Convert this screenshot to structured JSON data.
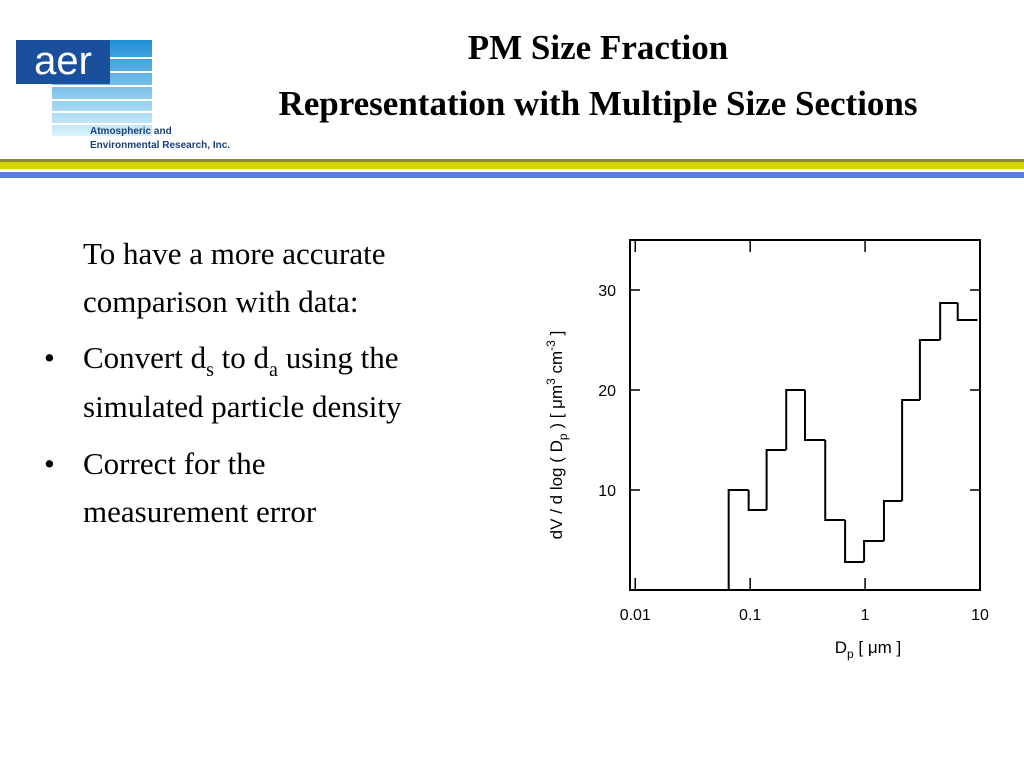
{
  "header": {
    "logo_text": "aer",
    "org_lines": [
      "Atmospheric and",
      "Environmental Research, Inc."
    ],
    "title_lines": [
      "PM Size Fraction",
      "Representation with Multiple Size Sections"
    ]
  },
  "body": {
    "intro_lines": [
      "To have a more accurate",
      "comparison with data:"
    ],
    "bullets": [
      {
        "line1": [
          "Convert d",
          "s",
          " to d",
          "a",
          " using the"
        ],
        "line2": "simulated particle density"
      },
      {
        "line1": [
          "Correct for the"
        ],
        "line2": "measurement error"
      }
    ]
  },
  "chart_data": {
    "type": "histogram",
    "xlabel": [
      "D",
      "p",
      " [ μm ]"
    ],
    "ylabel": [
      "dV / d log ( D",
      "p",
      " ) [ μm",
      "3",
      " cm",
      "-3",
      " ]"
    ],
    "xscale": "log",
    "bins": [
      0.009,
      0.065,
      0.097,
      0.139,
      0.206,
      0.3,
      0.45,
      0.67,
      0.98,
      1.46,
      2.1,
      3.0,
      4.5,
      6.4,
      9.5
    ],
    "values": [
      0,
      10,
      8,
      14,
      20,
      15,
      7,
      2.8,
      4.9,
      8.9,
      19,
      25,
      28.7,
      27
    ],
    "color": "#000000",
    "xlim": [
      0.009,
      10
    ],
    "xticks": [
      {
        "value": 0.01,
        "label": "0.01"
      },
      0.1,
      1,
      10
    ],
    "ylim": [
      0,
      35
    ],
    "yticks": [
      10,
      20,
      30
    ]
  }
}
